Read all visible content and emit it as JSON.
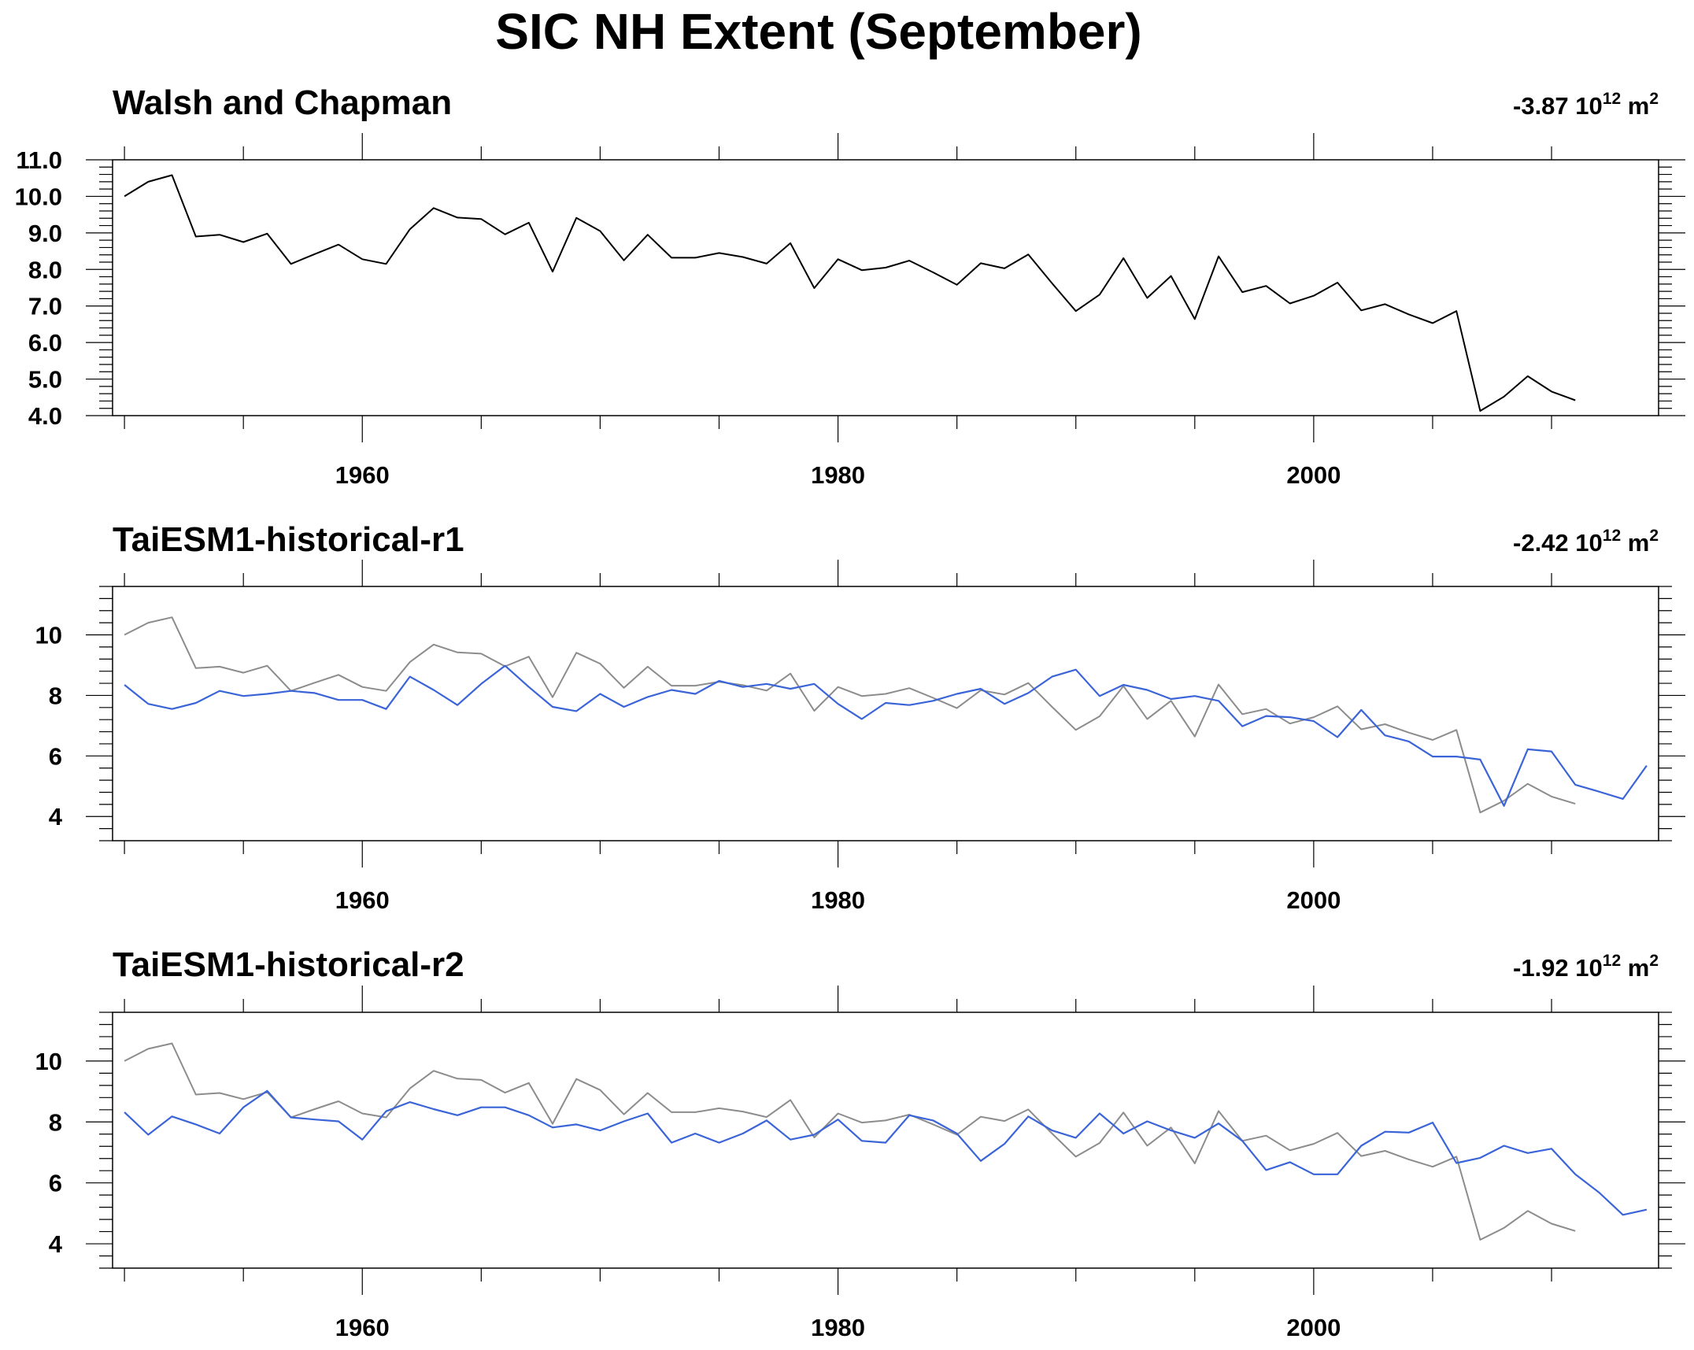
{
  "figure": {
    "title": "SIC NH Extent (September)"
  },
  "colors": {
    "observation_line": "#000000",
    "observation_overlay_line": "#8c8c8c",
    "model_line": "#3a64d8"
  },
  "chart_data": [
    {
      "type": "line",
      "title": "Walsh and Chapman",
      "trend_value": "-3.87 10",
      "trend_exp": "12",
      "trend_unit": " m",
      "trend_unit_exp": "2",
      "xlim": [
        1949.5,
        2014.5
      ],
      "ylim": [
        4.0,
        11.0
      ],
      "ytick_values": [
        4,
        5,
        6,
        7,
        8,
        9,
        10,
        11
      ],
      "ytick_labels": [
        "4.0",
        "5.0",
        "6.0",
        "7.0",
        "8.0",
        "9.0",
        "10.0",
        "11.0"
      ],
      "xtick_values": [
        1960,
        1980,
        2000
      ],
      "xtick_labels": [
        "1960",
        "1980",
        "2000"
      ],
      "series": [
        {
          "x_start": 1950,
          "values": [
            10.0,
            10.4,
            10.58,
            8.9,
            8.95,
            8.75,
            8.98,
            8.15,
            8.42,
            8.68,
            8.28,
            8.15,
            9.1,
            9.68,
            9.42,
            9.38,
            8.96,
            9.28,
            7.94,
            9.41,
            9.05,
            8.25,
            8.95,
            8.32,
            8.32,
            8.45,
            8.34,
            8.16,
            8.72,
            7.49,
            8.28,
            7.98,
            8.05,
            8.24,
            7.92,
            7.58,
            8.17,
            8.03,
            8.41,
            7.62,
            6.86,
            7.31,
            8.31,
            7.22,
            7.82,
            6.64,
            8.36,
            7.38,
            7.55,
            7.07,
            7.28,
            7.64,
            6.88,
            7.05,
            6.77,
            6.53,
            6.86,
            4.13,
            4.52,
            5.08,
            4.66,
            4.42
          ]
        }
      ]
    },
    {
      "type": "line",
      "title": "TaiESM1-historical-r1",
      "trend_value": "-2.42 10",
      "trend_exp": "12",
      "trend_unit": " m",
      "trend_unit_exp": "2",
      "xlim": [
        1949.5,
        2014.5
      ],
      "ylim": [
        3.2,
        11.6
      ],
      "ytick_values": [
        4,
        6,
        8,
        10
      ],
      "ytick_labels": [
        "4",
        "6",
        "8",
        "10"
      ],
      "xtick_values": [
        1960,
        1980,
        2000
      ],
      "xtick_labels": [
        "1960",
        "1980",
        "2000"
      ],
      "series": [
        {
          "role": "observation",
          "x_start": 1950,
          "values": [
            10.0,
            10.4,
            10.58,
            8.9,
            8.95,
            8.75,
            8.98,
            8.15,
            8.42,
            8.68,
            8.28,
            8.15,
            9.1,
            9.68,
            9.42,
            9.38,
            8.96,
            9.28,
            7.94,
            9.41,
            9.05,
            8.25,
            8.95,
            8.32,
            8.32,
            8.45,
            8.34,
            8.16,
            8.72,
            7.49,
            8.28,
            7.98,
            8.05,
            8.24,
            7.92,
            7.58,
            8.17,
            8.03,
            8.41,
            7.62,
            6.86,
            7.31,
            8.31,
            7.22,
            7.82,
            6.64,
            8.36,
            7.38,
            7.55,
            7.07,
            7.28,
            7.64,
            6.88,
            7.05,
            6.77,
            6.53,
            6.86,
            4.13,
            4.52,
            5.08,
            4.66,
            4.42
          ]
        },
        {
          "role": "model",
          "x_start": 1950,
          "values": [
            8.35,
            7.72,
            7.55,
            7.75,
            8.15,
            7.98,
            8.05,
            8.15,
            8.08,
            7.85,
            7.85,
            7.55,
            8.62,
            8.18,
            7.68,
            8.38,
            8.98,
            8.28,
            7.62,
            7.48,
            8.05,
            7.62,
            7.95,
            8.18,
            8.05,
            8.48,
            8.28,
            8.38,
            8.22,
            8.38,
            7.72,
            7.22,
            7.75,
            7.68,
            7.82,
            8.05,
            8.22,
            7.72,
            8.08,
            8.62,
            8.85,
            7.98,
            8.35,
            8.18,
            7.88,
            7.98,
            7.82,
            6.98,
            7.32,
            7.28,
            7.15,
            6.62,
            7.52,
            6.68,
            6.48,
            5.98,
            5.98,
            5.88,
            4.35,
            6.22,
            6.15,
            5.05,
            4.82,
            4.58,
            5.68
          ]
        }
      ]
    },
    {
      "type": "line",
      "title": "TaiESM1-historical-r2",
      "trend_value": "-1.92 10",
      "trend_exp": "12",
      "trend_unit": " m",
      "trend_unit_exp": "2",
      "xlim": [
        1949.5,
        2014.5
      ],
      "ylim": [
        3.2,
        11.6
      ],
      "ytick_values": [
        4,
        6,
        8,
        10
      ],
      "ytick_labels": [
        "4",
        "6",
        "8",
        "10"
      ],
      "xtick_values": [
        1960,
        1980,
        2000
      ],
      "xtick_labels": [
        "1960",
        "1980",
        "2000"
      ],
      "series": [
        {
          "role": "observation",
          "x_start": 1950,
          "values": [
            10.0,
            10.4,
            10.58,
            8.9,
            8.95,
            8.75,
            8.98,
            8.15,
            8.42,
            8.68,
            8.28,
            8.15,
            9.1,
            9.68,
            9.42,
            9.38,
            8.96,
            9.28,
            7.94,
            9.41,
            9.05,
            8.25,
            8.95,
            8.32,
            8.32,
            8.45,
            8.34,
            8.16,
            8.72,
            7.49,
            8.28,
            7.98,
            8.05,
            8.24,
            7.92,
            7.58,
            8.17,
            8.03,
            8.41,
            7.62,
            6.86,
            7.31,
            8.31,
            7.22,
            7.82,
            6.64,
            8.36,
            7.38,
            7.55,
            7.07,
            7.28,
            7.64,
            6.88,
            7.05,
            6.77,
            6.53,
            6.86,
            4.13,
            4.52,
            5.08,
            4.66,
            4.42
          ]
        },
        {
          "role": "model",
          "x_start": 1950,
          "values": [
            8.32,
            7.58,
            8.18,
            7.92,
            7.62,
            8.48,
            9.02,
            8.15,
            8.08,
            8.02,
            7.42,
            8.35,
            8.65,
            8.42,
            8.22,
            8.48,
            8.48,
            8.22,
            7.82,
            7.92,
            7.72,
            8.02,
            8.28,
            7.32,
            7.62,
            7.32,
            7.62,
            8.05,
            7.42,
            7.58,
            8.08,
            7.38,
            7.32,
            8.22,
            8.05,
            7.62,
            6.72,
            7.28,
            8.18,
            7.72,
            7.48,
            8.28,
            7.62,
            8.02,
            7.72,
            7.48,
            7.95,
            7.38,
            6.42,
            6.68,
            6.28,
            6.28,
            7.22,
            7.68,
            7.65,
            7.98,
            6.65,
            6.82,
            7.22,
            6.98,
            7.12,
            6.28,
            5.68,
            4.95,
            5.12
          ]
        }
      ]
    }
  ]
}
